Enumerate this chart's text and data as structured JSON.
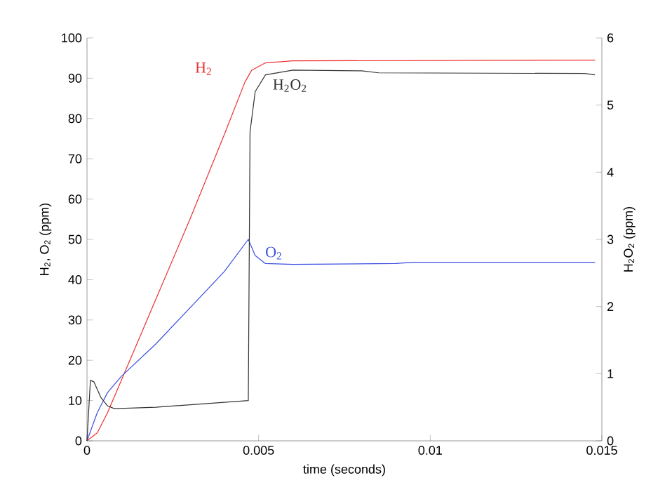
{
  "chart_data": {
    "type": "line",
    "xlabel": "time (seconds)",
    "ylabel": "H$_{2}$, O$_{2}$ (ppm)",
    "y2label": "H$_{2}$O$_{2}$ (ppm)",
    "xlim": [
      0,
      0.015
    ],
    "xticks": [
      0,
      0.005,
      0.01,
      0.015
    ],
    "ylim": [
      0,
      100
    ],
    "yticks": [
      0,
      10,
      20,
      30,
      40,
      50,
      60,
      70,
      80,
      90,
      100
    ],
    "y2lim": [
      0,
      6
    ],
    "y2ticks": [
      0,
      1,
      2,
      3,
      4,
      5,
      6
    ],
    "grid": false,
    "legend": false,
    "marker": "none",
    "line_style": "solid",
    "series": [
      {
        "name": "H$_{2}$",
        "color": "#ee3030",
        "x": [
          0,
          0.0003,
          0.0006,
          0.001,
          0.002,
          0.003,
          0.004,
          0.0046,
          0.0048,
          0.0052,
          0.006,
          0.0148
        ],
        "values": [
          0,
          2,
          7,
          15,
          35,
          55,
          76,
          89,
          92,
          93.8,
          94.3,
          94.5
        ]
      },
      {
        "name": "H$_{2}$O$_{2}$",
        "color": "#333333",
        "axis": "y2",
        "x": [
          0,
          0.0001,
          0.0002,
          0.0004,
          0.0006,
          0.0008,
          0.002,
          0.0047,
          0.00475,
          0.0049,
          0.0052,
          0.006,
          0.008,
          0.0085,
          0.0145,
          0.0148
        ],
        "values": [
          0,
          0.9,
          0.88,
          0.65,
          0.52,
          0.48,
          0.5,
          0.6,
          4.6,
          5.2,
          5.45,
          5.52,
          5.51,
          5.48,
          5.47,
          5.45
        ]
      },
      {
        "name": "O$_{2}$",
        "color": "#3a4ee0",
        "x": [
          0,
          0.0003,
          0.0006,
          0.001,
          0.002,
          0.003,
          0.004,
          0.0047,
          0.0049,
          0.0052,
          0.006,
          0.009,
          0.0095,
          0.0148
        ],
        "values": [
          0,
          7,
          12,
          16,
          24,
          33,
          42,
          50,
          46,
          44,
          43.8,
          44,
          44.3,
          44.3
        ]
      }
    ]
  }
}
